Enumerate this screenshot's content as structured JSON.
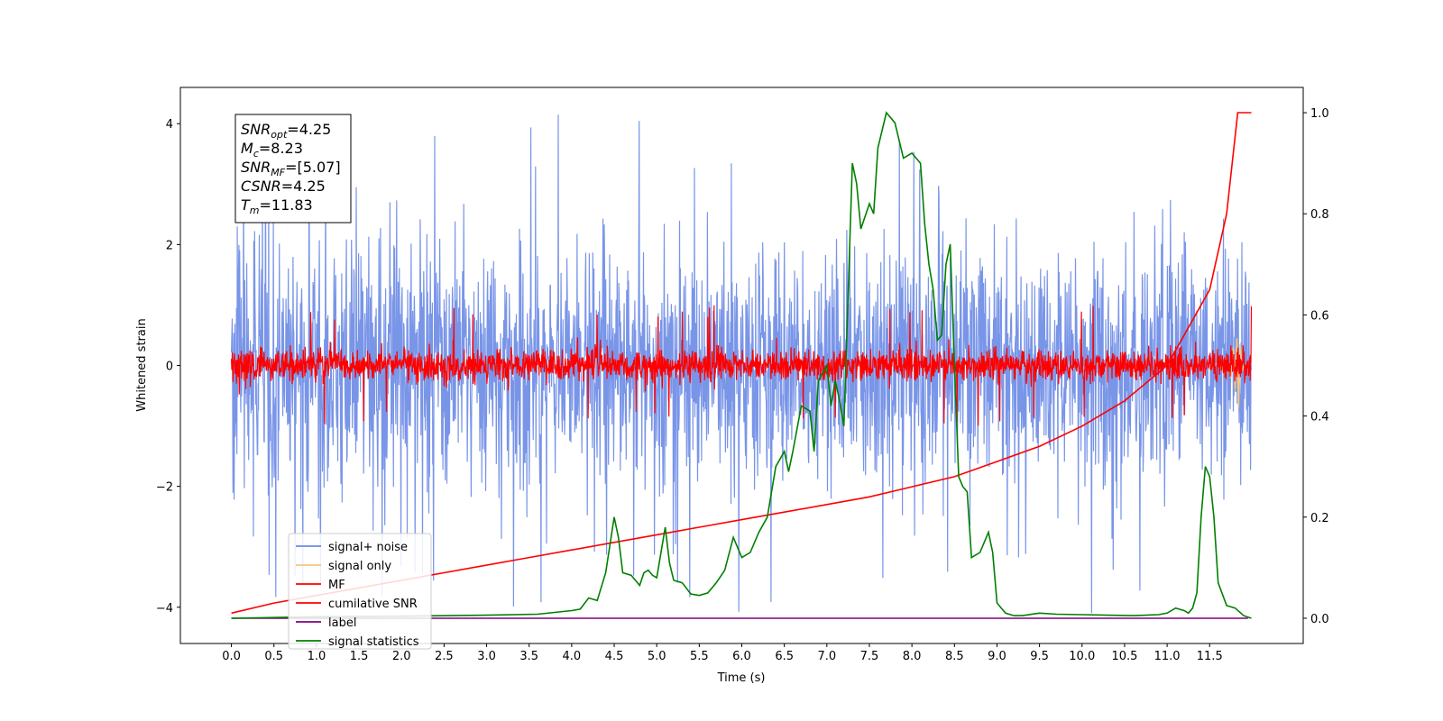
{
  "chart_data": {
    "type": "line",
    "xlabel": "Time (s)",
    "ylabel": "Whitened strain",
    "xlim": [
      -0.6,
      12.6
    ],
    "ylim": [
      -4.6,
      4.6
    ],
    "y2lim": [
      -0.05,
      1.05
    ],
    "x_ticks": [
      0.0,
      0.5,
      1.0,
      1.5,
      2.0,
      2.5,
      3.0,
      3.5,
      4.0,
      4.5,
      5.0,
      5.5,
      6.0,
      6.5,
      7.0,
      7.5,
      8.0,
      8.5,
      9.0,
      9.5,
      10.0,
      10.5,
      11.0,
      11.5
    ],
    "x_tick_labels": [
      "0.0",
      "0.5",
      "1.0",
      "1.5",
      "2.0",
      "2.5",
      "3.0",
      "3.5",
      "4.0",
      "4.5",
      "5.0",
      "5.5",
      "6.0",
      "6.5",
      "7.0",
      "7.5",
      "8.0",
      "8.5",
      "9.0",
      "9.5",
      "10.0",
      "10.5",
      "11.0",
      "11.5"
    ],
    "y_ticks": [
      -4,
      -2,
      0,
      2,
      4
    ],
    "y_tick_labels": [
      "−4",
      "−2",
      "0",
      "2",
      "4"
    ],
    "y2_ticks": [
      0.0,
      0.2,
      0.4,
      0.6,
      0.8,
      1.0
    ],
    "y2_tick_labels": [
      "0.0",
      "0.2",
      "0.4",
      "0.6",
      "0.8",
      "1.0"
    ],
    "annotation": [
      {
        "sym": "SNR",
        "sub": "opt",
        "value": "=4.25"
      },
      {
        "sym": "M",
        "sub": "c",
        "value": "=8.23"
      },
      {
        "sym": "SNR",
        "sub": "MF",
        "value": "=[5.07]"
      },
      {
        "sym": "CSNR",
        "sub": "",
        "value": "=4.25"
      },
      {
        "sym": "T",
        "sub": "m",
        "value": "=11.83"
      }
    ],
    "legend_position": "lower-left",
    "series": [
      {
        "name": "signal+ noise",
        "color": "#6a8ae6",
        "axis": "left",
        "kind": "noise",
        "x_range": [
          0.0,
          11.99
        ],
        "envelope": 2.2,
        "peak": 4.15
      },
      {
        "name": "signal only",
        "color": "#f5c77e",
        "axis": "left",
        "x": [
          11.55,
          11.6,
          11.65,
          11.7,
          11.75,
          11.78,
          11.8,
          11.82,
          11.84,
          11.86,
          11.88,
          11.9
        ],
        "y": [
          0.0,
          0.05,
          -0.08,
          0.12,
          -0.2,
          0.3,
          -0.4,
          0.45,
          -0.7,
          0.35,
          -0.1,
          0.0
        ]
      },
      {
        "name": "MF",
        "color": "#ff0000",
        "axis": "left",
        "kind": "noise",
        "x_range": [
          0.0,
          11.99
        ],
        "envelope": 0.3,
        "peak": 1.0
      },
      {
        "name": "cumilative SNR",
        "color": "#ff0000",
        "axis": "right",
        "x": [
          0.0,
          0.5,
          1.0,
          1.5,
          2.0,
          2.5,
          3.0,
          3.5,
          4.0,
          4.5,
          5.0,
          5.5,
          6.0,
          6.5,
          7.0,
          7.5,
          8.0,
          8.5,
          9.0,
          9.5,
          10.0,
          10.5,
          11.0,
          11.5,
          11.7,
          11.83,
          11.99
        ],
        "y": [
          0.01,
          0.03,
          0.045,
          0.06,
          0.075,
          0.09,
          0.105,
          0.12,
          0.135,
          0.15,
          0.165,
          0.18,
          0.195,
          0.21,
          0.225,
          0.24,
          0.26,
          0.28,
          0.31,
          0.34,
          0.38,
          0.43,
          0.5,
          0.65,
          0.8,
          1.0,
          1.0
        ]
      },
      {
        "name": "label",
        "color": "#800080",
        "axis": "right",
        "x": [
          0.0,
          11.95
        ],
        "y": [
          0.0,
          0.0
        ]
      },
      {
        "name": "signal statistics",
        "color": "#008000",
        "axis": "right",
        "x": [
          0.0,
          1.0,
          2.0,
          3.0,
          3.6,
          4.0,
          4.1,
          4.2,
          4.3,
          4.4,
          4.5,
          4.55,
          4.6,
          4.7,
          4.8,
          4.85,
          4.9,
          4.95,
          5.0,
          5.1,
          5.15,
          5.2,
          5.3,
          5.4,
          5.5,
          5.6,
          5.7,
          5.8,
          5.9,
          6.0,
          6.1,
          6.2,
          6.3,
          6.4,
          6.5,
          6.55,
          6.6,
          6.7,
          6.8,
          6.85,
          6.9,
          7.0,
          7.05,
          7.1,
          7.15,
          7.2,
          7.3,
          7.35,
          7.4,
          7.5,
          7.55,
          7.6,
          7.7,
          7.8,
          7.9,
          8.0,
          8.1,
          8.15,
          8.2,
          8.25,
          8.3,
          8.35,
          8.4,
          8.45,
          8.5,
          8.55,
          8.6,
          8.65,
          8.7,
          8.8,
          8.9,
          8.95,
          9.0,
          9.1,
          9.2,
          9.3,
          9.5,
          9.7,
          10.0,
          10.3,
          10.6,
          10.9,
          11.0,
          11.1,
          11.2,
          11.25,
          11.3,
          11.35,
          11.4,
          11.45,
          11.5,
          11.55,
          11.6,
          11.7,
          11.8,
          11.9,
          11.99
        ],
        "y": [
          0.0,
          0.003,
          0.004,
          0.006,
          0.008,
          0.015,
          0.018,
          0.04,
          0.035,
          0.09,
          0.2,
          0.16,
          0.09,
          0.085,
          0.065,
          0.09,
          0.095,
          0.085,
          0.08,
          0.18,
          0.11,
          0.075,
          0.07,
          0.048,
          0.045,
          0.05,
          0.07,
          0.095,
          0.16,
          0.12,
          0.13,
          0.17,
          0.2,
          0.3,
          0.33,
          0.29,
          0.33,
          0.42,
          0.41,
          0.33,
          0.47,
          0.5,
          0.42,
          0.47,
          0.43,
          0.38,
          0.9,
          0.86,
          0.77,
          0.82,
          0.8,
          0.93,
          1.0,
          0.98,
          0.91,
          0.92,
          0.9,
          0.78,
          0.7,
          0.65,
          0.55,
          0.56,
          0.7,
          0.74,
          0.5,
          0.28,
          0.26,
          0.25,
          0.12,
          0.13,
          0.17,
          0.13,
          0.03,
          0.01,
          0.005,
          0.005,
          0.01,
          0.008,
          0.007,
          0.006,
          0.005,
          0.007,
          0.01,
          0.02,
          0.015,
          0.01,
          0.02,
          0.05,
          0.2,
          0.3,
          0.28,
          0.2,
          0.07,
          0.025,
          0.02,
          0.005,
          0.0
        ]
      }
    ]
  }
}
